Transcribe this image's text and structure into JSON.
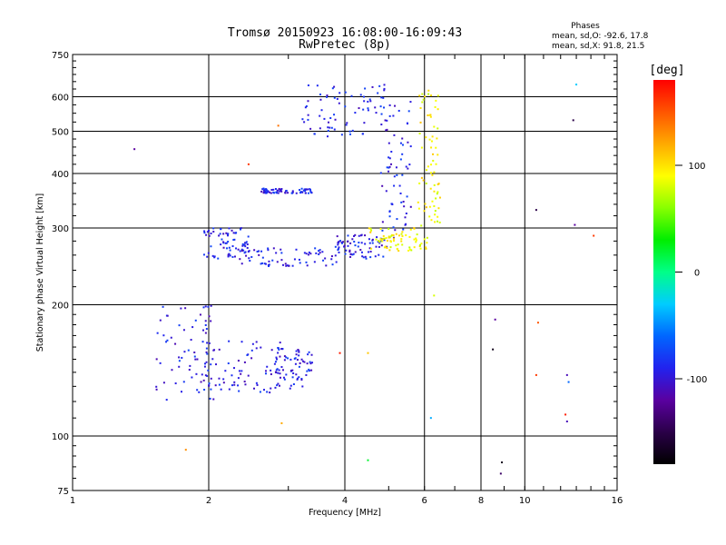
{
  "chart_data": {
    "type": "scatter",
    "title_line1": "Tromsø 20150923 16:08:00-16:09:43",
    "title_line2": "RwPretec (8p)",
    "xlabel": "Frequency [MHz]",
    "ylabel": "Stationary phase Virtual Height [km]",
    "x_scale": "log2",
    "y_scale": "log",
    "xlim": [
      1,
      16
    ],
    "ylim": [
      75,
      750
    ],
    "x_ticks": [
      1,
      2,
      4,
      6,
      8,
      10,
      16
    ],
    "x_gridlines": [
      2,
      4,
      6,
      8,
      10
    ],
    "y_ticks": [
      75,
      100,
      200,
      300,
      400,
      500,
      600,
      750
    ],
    "y_gridlines": [
      100,
      200,
      300,
      400,
      500,
      600
    ],
    "phase_box": {
      "title": "Phases",
      "line_o": "mean, sd,O: -92.6, 17.8",
      "line_x": "mean, sd,X:  91.8, 21.5"
    },
    "colorbar": {
      "label": "[deg]",
      "range": [
        -180,
        180
      ],
      "ticks": [
        100,
        0,
        -100
      ],
      "gradient": [
        "#000000",
        "#2a0048",
        "#5a00a0",
        "#2222ee",
        "#0066ff",
        "#00ccff",
        "#00ff88",
        "#00ee00",
        "#88ff00",
        "#ffff00",
        "#ffaa00",
        "#ff5500",
        "#ff0000"
      ]
    },
    "colors": {
      "o_trace": "#1a2adc",
      "x_trace": "#e0e020",
      "grid": "#000000"
    },
    "series": [
      {
        "mode": "O",
        "phase_mean": -92.6,
        "clusters": [
          {
            "f": [
              1.93,
              2.45
            ],
            "h": [
              255,
              300
            ]
          },
          {
            "f": [
              2.3,
              3.9
            ],
            "h": [
              245,
              270
            ]
          },
          {
            "f": [
              3.8,
              5.0
            ],
            "h": [
              255,
              290
            ]
          },
          {
            "f": [
              4.8,
              5.6
            ],
            "h": [
              280,
              600
            ]
          },
          {
            "f": [
              3.2,
              4.9
            ],
            "h": [
              480,
              640
            ]
          },
          {
            "f": [
              2.6,
              3.4
            ],
            "h": [
              360,
              370
            ]
          },
          {
            "f": [
              1.52,
              2.05
            ],
            "h": [
              120,
              200
            ]
          },
          {
            "f": [
              1.95,
              2.9
            ],
            "h": [
              125,
              165
            ]
          },
          {
            "f": [
              2.8,
              3.4
            ],
            "h": [
              128,
              160
            ]
          }
        ]
      },
      {
        "mode": "X",
        "phase_mean": 91.8,
        "clusters": [
          {
            "f": [
              4.5,
              6.2
            ],
            "h": [
              265,
              300
            ]
          },
          {
            "f": [
              5.8,
              6.5
            ],
            "h": [
              300,
              620
            ]
          }
        ]
      }
    ],
    "outliers": [
      {
        "f": 1.37,
        "h": 455,
        "phase": -120
      },
      {
        "f": 2.45,
        "h": 420,
        "phase": 160
      },
      {
        "f": 2.85,
        "h": 515,
        "phase": 140
      },
      {
        "f": 1.78,
        "h": 93,
        "phase": 130
      },
      {
        "f": 2.9,
        "h": 107,
        "phase": 120
      },
      {
        "f": 3.9,
        "h": 155,
        "phase": 170
      },
      {
        "f": 4.5,
        "h": 88,
        "phase": 20
      },
      {
        "f": 4.5,
        "h": 155,
        "phase": 110
      },
      {
        "f": 6.3,
        "h": 210,
        "phase": 80
      },
      {
        "f": 6.2,
        "h": 110,
        "phase": -40
      },
      {
        "f": 8.6,
        "h": 185,
        "phase": -120
      },
      {
        "f": 8.5,
        "h": 158,
        "phase": -170
      },
      {
        "f": 8.9,
        "h": 87,
        "phase": -170
      },
      {
        "f": 8.85,
        "h": 82,
        "phase": -140
      },
      {
        "f": 10.6,
        "h": 330,
        "phase": -150
      },
      {
        "f": 10.7,
        "h": 182,
        "phase": 150
      },
      {
        "f": 10.6,
        "h": 138,
        "phase": 160
      },
      {
        "f": 12.3,
        "h": 112,
        "phase": 170
      },
      {
        "f": 12.4,
        "h": 108,
        "phase": -110
      },
      {
        "f": 12.4,
        "h": 138,
        "phase": -110
      },
      {
        "f": 12.5,
        "h": 133,
        "phase": -60
      },
      {
        "f": 12.8,
        "h": 530,
        "phase": -150
      },
      {
        "f": 13.0,
        "h": 640,
        "phase": -30
      },
      {
        "f": 12.9,
        "h": 305,
        "phase": -120
      },
      {
        "f": 14.2,
        "h": 288,
        "phase": 160
      }
    ]
  }
}
